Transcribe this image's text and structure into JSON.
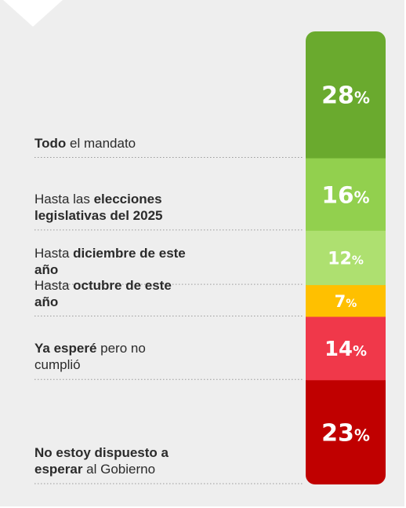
{
  "chart_data": {
    "type": "bar",
    "orientation": "stacked-vertical",
    "unit": "%",
    "categories": [
      "Todo el mandato",
      "Hasta las elecciones legislativas del 2025",
      "Hasta diciembre de este año",
      "Hasta octubre de este año",
      "Ya esperé pero no cumplió",
      "No estoy dispuesto a esperar al Gobierno"
    ],
    "values": [
      28,
      16,
      12,
      7,
      14,
      23
    ],
    "value_labels": [
      "28%",
      "16%",
      "12%",
      "7%",
      "14%",
      "23%"
    ],
    "colors": [
      "#6aaa2e",
      "#92d04e",
      "#aee070",
      "#ffc000",
      "#f0384a",
      "#c00000"
    ],
    "label_parts": [
      [
        {
          "text": "Todo",
          "bold": true
        },
        {
          "text": " el mandato",
          "bold": false
        }
      ],
      [
        {
          "text": "Hasta las ",
          "bold": false
        },
        {
          "text": "elecciones legislativas del 2025",
          "bold": true
        }
      ],
      [
        {
          "text": "Hasta ",
          "bold": false
        },
        {
          "text": "diciembre de este año",
          "bold": true
        }
      ],
      [
        {
          "text": "Hasta ",
          "bold": false
        },
        {
          "text": "octubre de este año",
          "bold": true
        }
      ],
      [
        {
          "text": "Ya esperé",
          "bold": true
        },
        {
          "text": " pero no cumplió",
          "bold": false
        }
      ],
      [
        {
          "text": "No estoy dispuesto a esperar",
          "bold": true
        },
        {
          "text": " al Gobierno",
          "bold": false
        }
      ]
    ],
    "title": "",
    "xlabel": "",
    "ylabel": "",
    "legend": "none",
    "grid": false
  }
}
